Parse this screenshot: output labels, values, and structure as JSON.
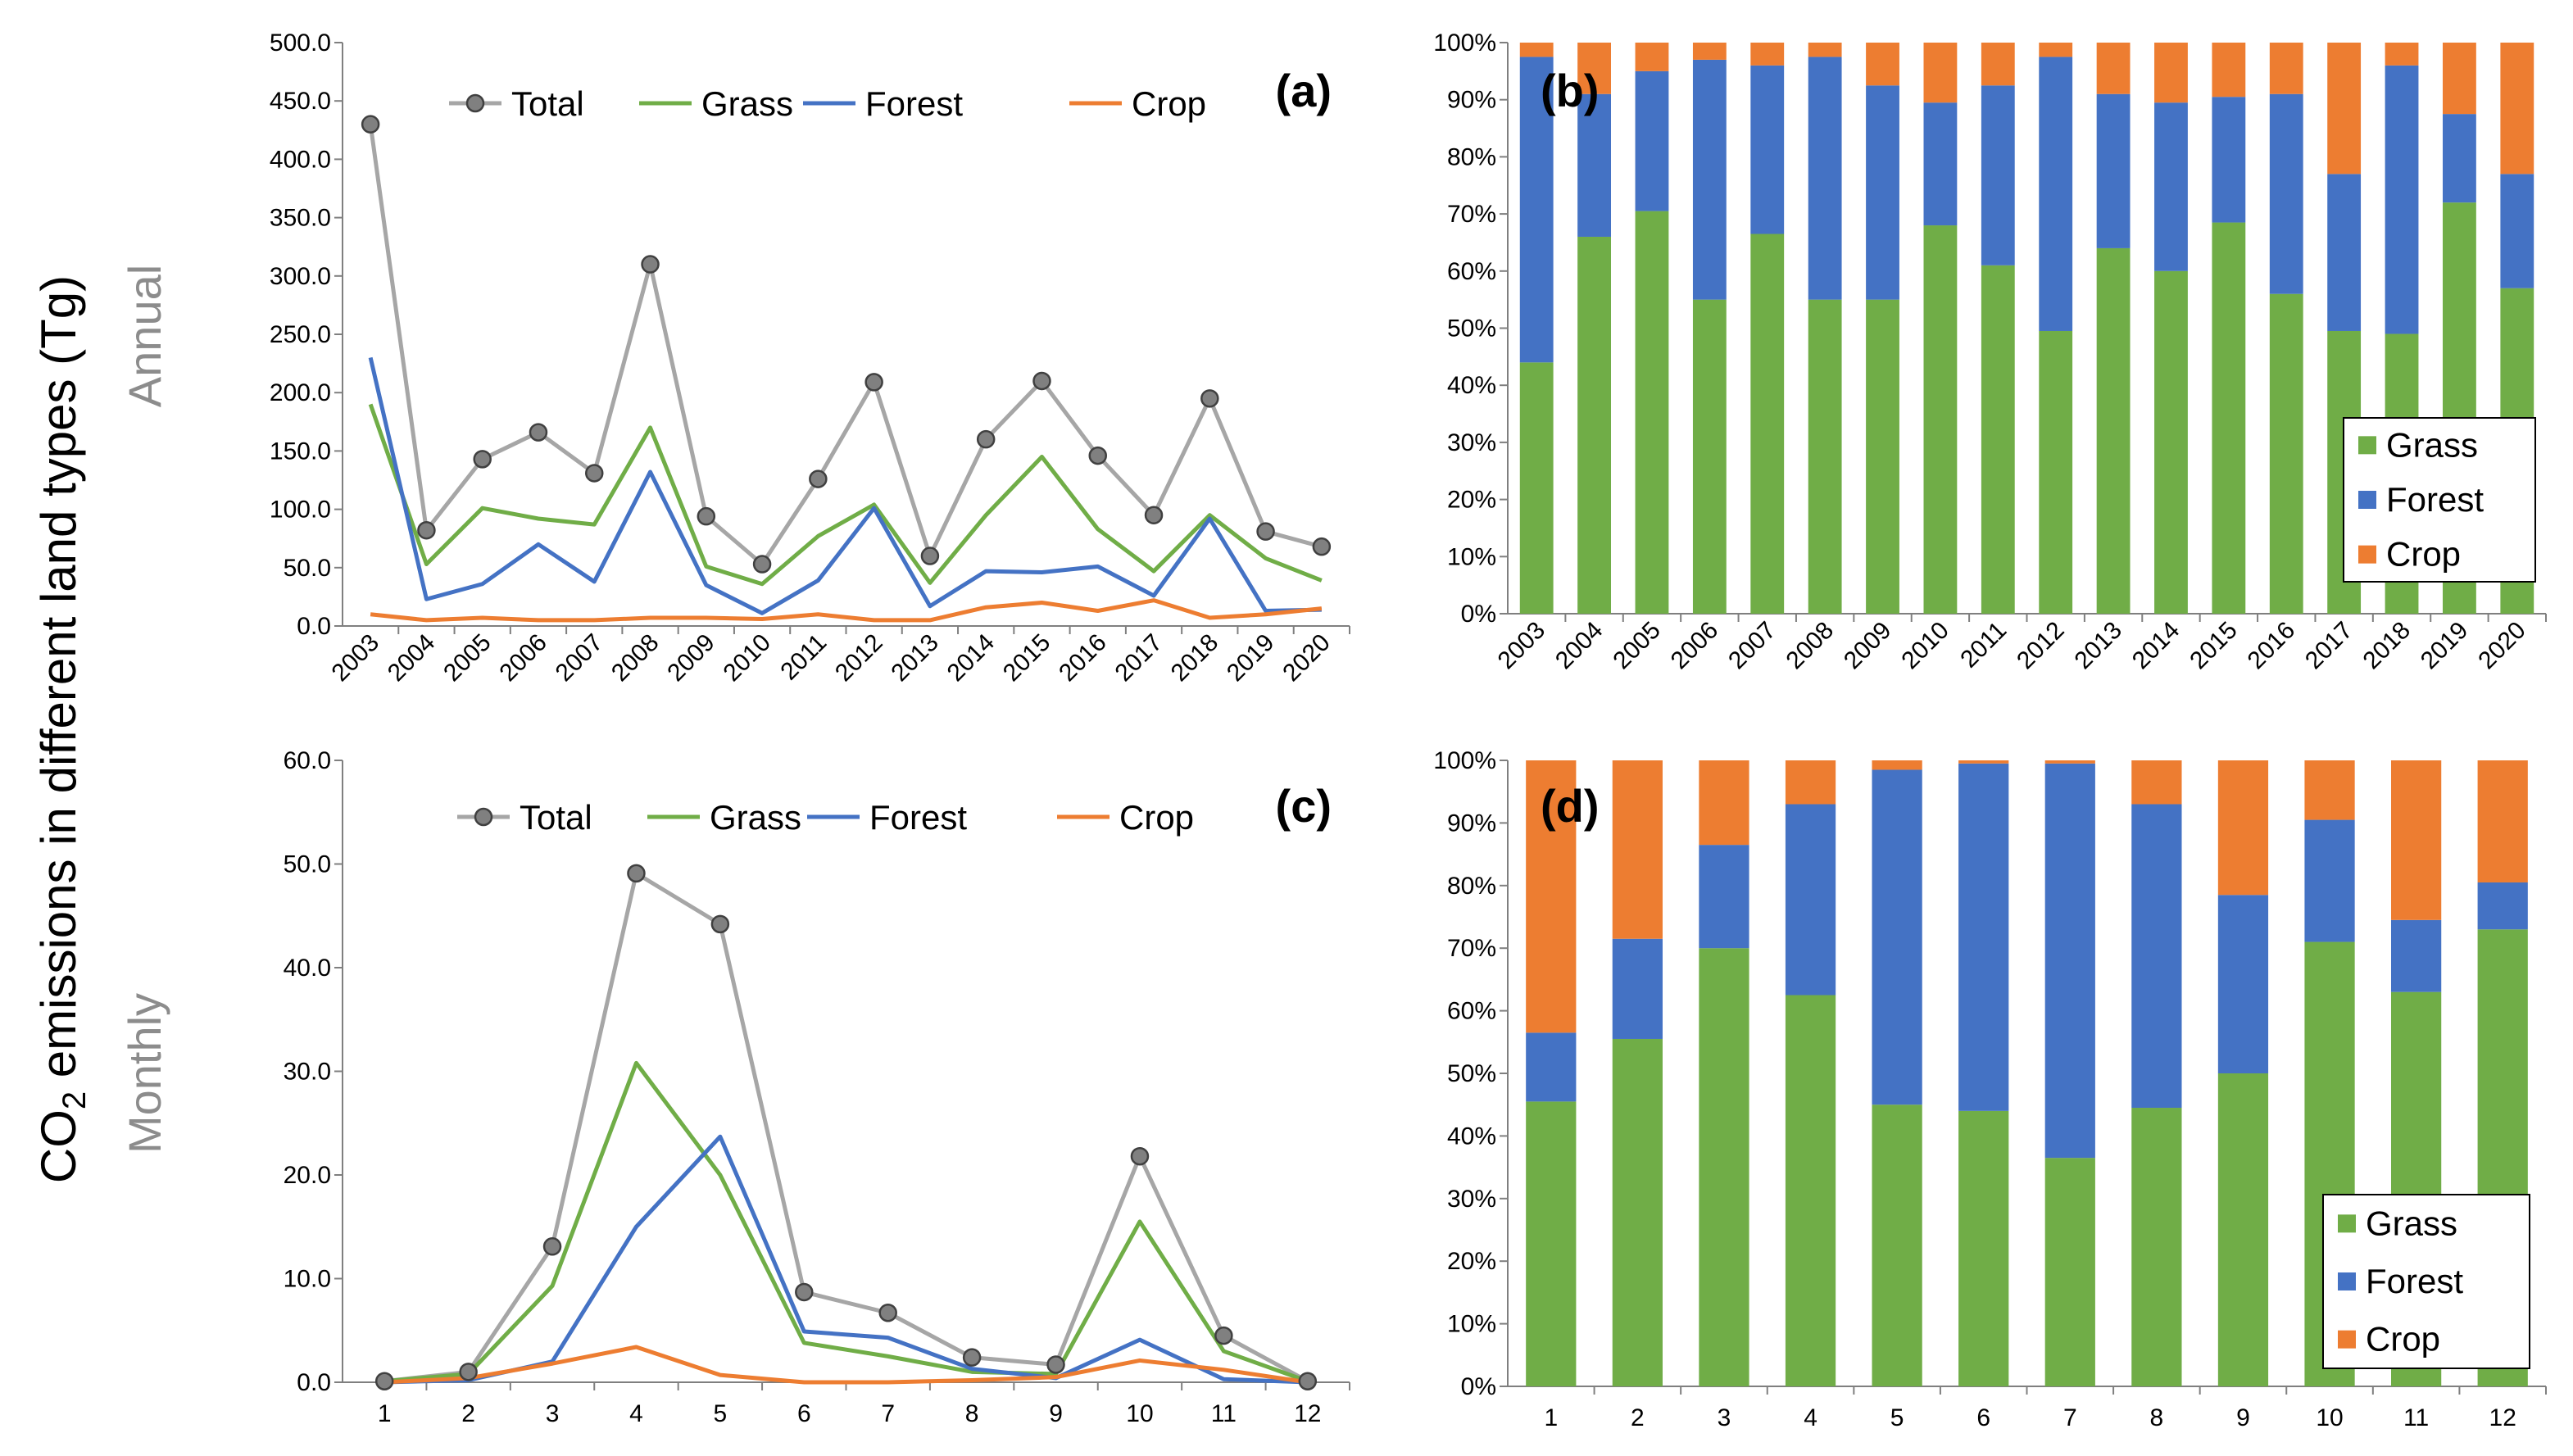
{
  "figure": {
    "ylabel_prefix": "CO",
    "ylabel_sub": "2",
    "ylabel_suffix": " emissions in different land types (Tg)",
    "row_labels": [
      "Annual",
      "Monthly"
    ]
  },
  "colors": {
    "total": "#a6a6a6",
    "total_marker": "#808080",
    "grass": "#70ad47",
    "forest": "#4472c4",
    "crop": "#ed7d31",
    "axis": "#7f7f7f"
  },
  "chart_data": [
    {
      "id": "a",
      "panel_label": "(a)",
      "type": "line",
      "categories": [
        "2003",
        "2004",
        "2005",
        "2006",
        "2007",
        "2008",
        "2009",
        "2010",
        "2011",
        "2012",
        "2013",
        "2014",
        "2015",
        "2016",
        "2017",
        "2018",
        "2019",
        "2020"
      ],
      "ylim": [
        0,
        500
      ],
      "ytick_step": 50,
      "ytick_labels": [
        "0.0",
        "50.0",
        "100.0",
        "150.0",
        "200.0",
        "250.0",
        "300.0",
        "350.0",
        "400.0",
        "450.0",
        "500.0"
      ],
      "legend": [
        "Total",
        "Grass",
        "Forest",
        "Crop"
      ],
      "series": [
        {
          "name": "Total",
          "key": "total",
          "marker": true,
          "values": [
            430,
            82,
            143,
            166,
            131,
            310,
            94,
            53,
            126,
            209,
            60,
            160,
            210,
            146,
            95,
            195,
            81,
            68
          ]
        },
        {
          "name": "Grass",
          "key": "grass",
          "values": [
            190,
            53,
            101,
            92,
            87,
            170,
            51,
            36,
            77,
            104,
            37,
            95,
            145,
            83,
            47,
            95,
            58,
            39
          ]
        },
        {
          "name": "Forest",
          "key": "forest",
          "values": [
            230,
            23,
            36,
            70,
            38,
            132,
            35,
            11,
            39,
            101,
            17,
            47,
            46,
            51,
            26,
            92,
            13,
            14
          ]
        },
        {
          "name": "Crop",
          "key": "crop",
          "values": [
            10,
            5,
            7,
            5,
            5,
            7,
            7,
            6,
            10,
            5,
            5,
            16,
            20,
            13,
            22,
            7,
            10,
            15
          ]
        }
      ]
    },
    {
      "id": "b",
      "panel_label": "(b)",
      "type": "bar",
      "stacked": "percent",
      "categories": [
        "2003",
        "2004",
        "2005",
        "2006",
        "2007",
        "2008",
        "2009",
        "2010",
        "2011",
        "2012",
        "2013",
        "2014",
        "2015",
        "2016",
        "2017",
        "2018",
        "2019",
        "2020"
      ],
      "ylim": [
        0,
        100
      ],
      "ytick_labels": [
        "0%",
        "10%",
        "20%",
        "30%",
        "40%",
        "50%",
        "60%",
        "70%",
        "80%",
        "90%",
        "100%"
      ],
      "legend": [
        "Grass",
        "Forest",
        "Crop"
      ],
      "series": [
        {
          "name": "Grass",
          "key": "grass",
          "values": [
            44,
            66,
            70.5,
            55,
            66.5,
            55,
            55,
            68,
            61,
            49.5,
            64,
            60,
            68.5,
            56,
            49.5,
            49,
            72,
            57
          ]
        },
        {
          "name": "Forest",
          "key": "forest",
          "values": [
            53.5,
            25,
            24.5,
            42,
            29.5,
            42.5,
            37.5,
            21.5,
            31.5,
            48,
            27,
            29.5,
            22,
            35,
            27.5,
            47,
            15.5,
            20
          ]
        },
        {
          "name": "Crop",
          "key": "crop",
          "values": [
            2.5,
            9,
            5,
            3,
            4,
            2.5,
            7.5,
            10.5,
            7.5,
            2.5,
            9,
            10.5,
            9.5,
            9,
            23,
            4,
            12.5,
            23
          ]
        }
      ]
    },
    {
      "id": "c",
      "panel_label": "(c)",
      "type": "line",
      "categories": [
        "1",
        "2",
        "3",
        "4",
        "5",
        "6",
        "7",
        "8",
        "9",
        "10",
        "11",
        "12"
      ],
      "ylim": [
        0,
        60
      ],
      "ytick_step": 10,
      "ytick_labels": [
        "0.0",
        "10.0",
        "20.0",
        "30.0",
        "40.0",
        "50.0",
        "60.0"
      ],
      "legend": [
        "Total",
        "Grass",
        "Forest",
        "Crop"
      ],
      "series": [
        {
          "name": "Total",
          "key": "total",
          "marker": true,
          "values": [
            0.1,
            1.0,
            13.1,
            49.1,
            44.2,
            8.7,
            6.7,
            2.4,
            1.7,
            21.8,
            4.5,
            0.1
          ]
        },
        {
          "name": "Grass",
          "key": "grass",
          "values": [
            0.1,
            0.8,
            9.3,
            30.8,
            20.0,
            3.8,
            2.5,
            1.0,
            0.8,
            15.5,
            3.0,
            0.1
          ]
        },
        {
          "name": "Forest",
          "key": "forest",
          "values": [
            0.0,
            0.2,
            2.0,
            15.0,
            23.7,
            4.9,
            4.3,
            1.3,
            0.4,
            4.1,
            0.3,
            0.0
          ]
        },
        {
          "name": "Crop",
          "key": "crop",
          "values": [
            0.0,
            0.4,
            1.8,
            3.4,
            0.7,
            0.0,
            0.0,
            0.2,
            0.5,
            2.1,
            1.2,
            0.0
          ]
        }
      ]
    },
    {
      "id": "d",
      "panel_label": "(d)",
      "type": "bar",
      "stacked": "percent",
      "categories": [
        "1",
        "2",
        "3",
        "4",
        "5",
        "6",
        "7",
        "8",
        "9",
        "10",
        "11",
        "12"
      ],
      "ylim": [
        0,
        100
      ],
      "ytick_labels": [
        "0%",
        "10%",
        "20%",
        "30%",
        "40%",
        "50%",
        "60%",
        "70%",
        "80%",
        "90%",
        "100%"
      ],
      "legend": [
        "Grass",
        "Forest",
        "Crop"
      ],
      "series": [
        {
          "name": "Grass",
          "key": "grass",
          "values": [
            45.5,
            55.5,
            70,
            62.5,
            45,
            44,
            36.5,
            44.5,
            50,
            71,
            63,
            73
          ]
        },
        {
          "name": "Forest",
          "key": "forest",
          "values": [
            11,
            16,
            16.5,
            30.5,
            53.5,
            55.5,
            63,
            48.5,
            28.5,
            19.5,
            11.5,
            7.5
          ]
        },
        {
          "name": "Crop",
          "key": "crop",
          "values": [
            43.5,
            28.5,
            13.5,
            7,
            1.5,
            0.5,
            0.5,
            7,
            21.5,
            9.5,
            25.5,
            19.5
          ]
        }
      ]
    }
  ]
}
